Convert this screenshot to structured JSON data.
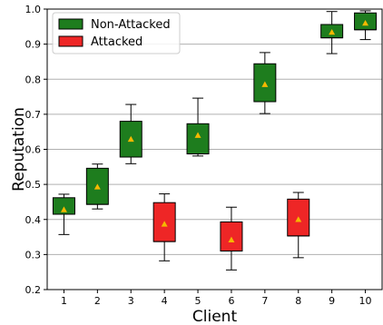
{
  "chart_data": {
    "type": "box",
    "title": "",
    "xlabel": "Client",
    "ylabel": "Reputation",
    "ylim": [
      0.2,
      1.0
    ],
    "yticks": [
      "0.2",
      "0.3",
      "0.4",
      "0.5",
      "0.6",
      "0.7",
      "0.8",
      "0.9",
      "1.0"
    ],
    "grid": "horizontal",
    "legend_position": "top-left",
    "series": [
      {
        "name": "Non-Attacked",
        "color": "#1e7d1e"
      },
      {
        "name": "Attacked",
        "color": "#ee2626"
      }
    ],
    "mean_marker_color": "#f5b800",
    "boxes": [
      {
        "client": "1",
        "group": "Non-Attacked",
        "whisker_low": 0.357,
        "q1": 0.415,
        "median": 0.415,
        "q3": 0.462,
        "whisker_high": 0.472,
        "mean": 0.428
      },
      {
        "client": "2",
        "group": "Non-Attacked",
        "whisker_low": 0.43,
        "q1": 0.443,
        "median": 0.443,
        "q3": 0.546,
        "whisker_high": 0.558,
        "mean": 0.493
      },
      {
        "client": "3",
        "group": "Non-Attacked",
        "whisker_low": 0.559,
        "q1": 0.578,
        "median": 0.578,
        "q3": 0.68,
        "whisker_high": 0.728,
        "mean": 0.629
      },
      {
        "client": "4",
        "group": "Attacked",
        "whisker_low": 0.282,
        "q1": 0.337,
        "median": 0.337,
        "q3": 0.448,
        "whisker_high": 0.473,
        "mean": 0.387
      },
      {
        "client": "5",
        "group": "Non-Attacked",
        "whisker_low": 0.581,
        "q1": 0.587,
        "median": 0.587,
        "q3": 0.673,
        "whisker_high": 0.746,
        "mean": 0.64
      },
      {
        "client": "6",
        "group": "Attacked",
        "whisker_low": 0.256,
        "q1": 0.31,
        "median": 0.31,
        "q3": 0.393,
        "whisker_high": 0.435,
        "mean": 0.342
      },
      {
        "client": "7",
        "group": "Non-Attacked",
        "whisker_low": 0.702,
        "q1": 0.736,
        "median": 0.736,
        "q3": 0.844,
        "whisker_high": 0.876,
        "mean": 0.785
      },
      {
        "client": "8",
        "group": "Attacked",
        "whisker_low": 0.291,
        "q1": 0.353,
        "median": 0.353,
        "q3": 0.458,
        "whisker_high": 0.477,
        "mean": 0.4
      },
      {
        "client": "9",
        "group": "Non-Attacked",
        "whisker_low": 0.873,
        "q1": 0.918,
        "median": 0.918,
        "q3": 0.956,
        "whisker_high": 0.993,
        "mean": 0.934
      },
      {
        "client": "10",
        "group": "Non-Attacked",
        "whisker_low": 0.913,
        "q1": 0.941,
        "median": 0.941,
        "q3": 0.989,
        "whisker_high": 0.995,
        "mean": 0.96
      }
    ]
  }
}
